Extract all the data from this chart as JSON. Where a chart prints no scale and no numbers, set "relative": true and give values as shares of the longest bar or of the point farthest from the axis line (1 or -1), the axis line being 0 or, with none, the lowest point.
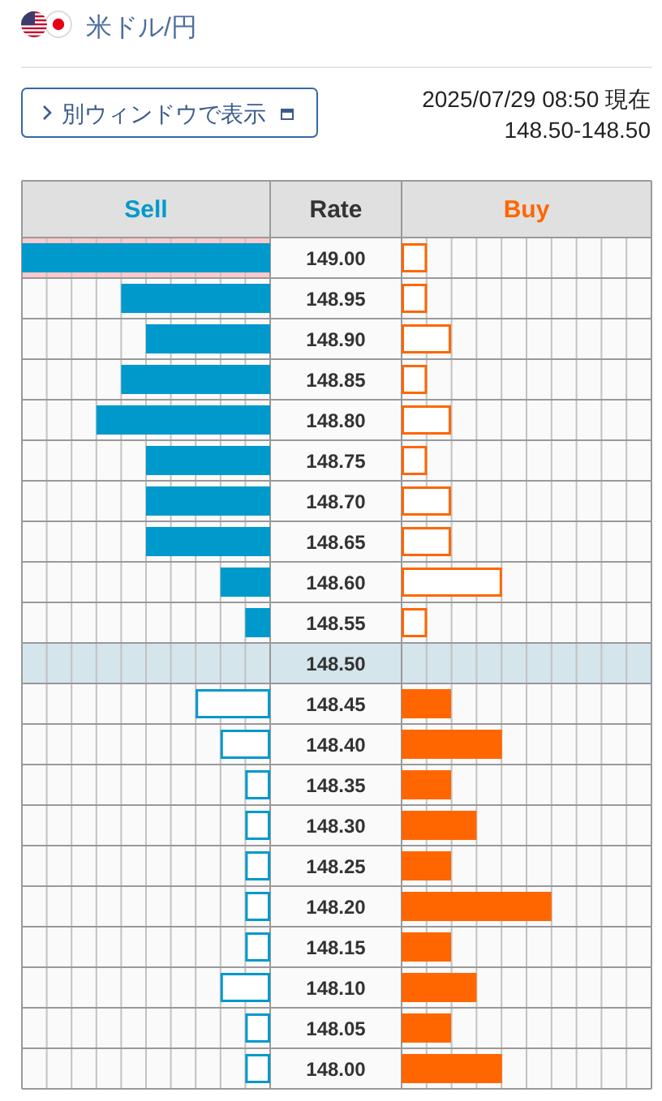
{
  "chart_data": [
    {
      "type": "bar",
      "orientation": "horizontal",
      "relative": true,
      "title": "米ドル/円",
      "ylabel": "Rate",
      "annotations": [
        "別ウィンドウで表示"
      ],
      "categories": [
        "149.00",
        "148.95",
        "148.90",
        "148.85",
        "148.80",
        "148.75",
        "148.70",
        "148.65",
        "148.60",
        "148.55",
        "148.50",
        "148.45",
        "148.40",
        "148.35",
        "148.30",
        "148.25",
        "148.20",
        "148.15",
        "148.10",
        "148.05",
        "148.00"
      ],
      "series": [
        {
          "name": "Sell",
          "color": "#0099cc",
          "values": [
            -1.0,
            -0.6,
            -0.5,
            -0.6,
            -0.7,
            -0.5,
            -0.5,
            -0.5,
            -0.2,
            -0.1,
            0,
            -0.3,
            -0.2,
            -0.1,
            -0.1,
            -0.1,
            -0.1,
            -0.1,
            -0.2,
            -0.1,
            -0.1
          ],
          "colors": [
            "#0099cc",
            "#0099cc",
            "#0099cc",
            "#0099cc",
            "#0099cc",
            "#0099cc",
            "#0099cc",
            "#0099cc",
            "#0099cc",
            "#0099cc",
            null,
            "#ffffff",
            "#ffffff",
            "#ffffff",
            "#ffffff",
            "#ffffff",
            "#ffffff",
            "#ffffff",
            "#ffffff",
            "#ffffff",
            "#ffffff"
          ]
        }
      ],
      "bands": [
        {
          "axis": "y",
          "from": "148.50",
          "to": "148.50",
          "color": "#d4e5eb"
        },
        {
          "axis": "y",
          "from": "149.00",
          "to": "149.00",
          "color": "#fcc9cc"
        }
      ],
      "grid": true
    },
    {
      "type": "bar",
      "orientation": "horizontal",
      "relative": true,
      "subtitle": "2025/07/29 08:50 現在",
      "annotations": [
        "148.50-148.50"
      ],
      "tick_labels": false,
      "categories": [
        "149.00",
        "148.95",
        "148.90",
        "148.85",
        "148.80",
        "148.75",
        "148.70",
        "148.65",
        "148.60",
        "148.55",
        "148.50",
        "148.45",
        "148.40",
        "148.35",
        "148.30",
        "148.25",
        "148.20",
        "148.15",
        "148.10",
        "148.05",
        "148.00"
      ],
      "series": [
        {
          "name": "Buy",
          "color": "#ff6600",
          "values": [
            0.17,
            0.17,
            0.33,
            0.17,
            0.33,
            0.17,
            0.33,
            0.33,
            0.67,
            0.17,
            0,
            0.33,
            0.67,
            0.33,
            0.5,
            0.33,
            1,
            0.33,
            0.5,
            0.33,
            0.67
          ],
          "colors": [
            "#ffffff",
            "#ffffff",
            "#ffffff",
            "#ffffff",
            "#ffffff",
            "#ffffff",
            "#ffffff",
            "#ffffff",
            "#ffffff",
            "#ffffff",
            null,
            "#ff6600",
            "#ff6600",
            "#ff6600",
            "#ff6600",
            "#ff6600",
            "#ff6600",
            "#ff6600",
            "#ff6600",
            "#ff6600",
            "#ff6600"
          ]
        }
      ],
      "bands": [
        {
          "axis": "y",
          "from": "148.50",
          "to": "148.50",
          "color": "#d4e5eb"
        }
      ],
      "grid": true
    }
  ]
}
